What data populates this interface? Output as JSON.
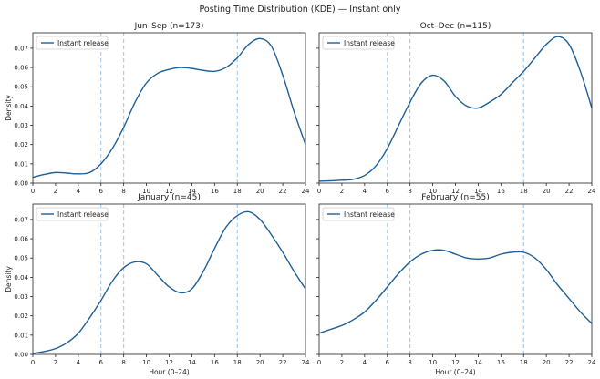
{
  "suptitle": "Posting Time Distribution (KDE) — Instant only",
  "chart_data": [
    {
      "type": "line",
      "title": "Jun–Sep (n=173)",
      "xlabel": "",
      "ylabel": "Density",
      "xlim": [
        0,
        24
      ],
      "ylim": [
        0,
        0.078
      ],
      "xticks": [
        "0",
        "2",
        "4",
        "6",
        "8",
        "10",
        "12",
        "14",
        "16",
        "18",
        "20",
        "22",
        "24"
      ],
      "yticks": [
        "0.00",
        "0.01",
        "0.02",
        "0.03",
        "0.04",
        "0.05",
        "0.06",
        "0.07"
      ],
      "vlines": [
        6,
        8,
        18
      ],
      "legend": "top-left",
      "series": [
        {
          "name": "Instant release",
          "color": "#1f5f96",
          "x": [
            0,
            1,
            2,
            3,
            4,
            5,
            6,
            7,
            8,
            9,
            10,
            11,
            12,
            13,
            14,
            15,
            16,
            17,
            18,
            19,
            20,
            21,
            22,
            23,
            24
          ],
          "y": [
            0.003,
            0.0045,
            0.0055,
            0.0052,
            0.0048,
            0.0055,
            0.01,
            0.018,
            0.029,
            0.042,
            0.052,
            0.057,
            0.059,
            0.06,
            0.0595,
            0.0585,
            0.058,
            0.06,
            0.065,
            0.072,
            0.075,
            0.071,
            0.056,
            0.037,
            0.02
          ]
        }
      ]
    },
    {
      "type": "line",
      "title": "Oct–Dec (n=115)",
      "xlabel": "",
      "ylabel": "",
      "xlim": [
        0,
        24
      ],
      "ylim": [
        0,
        0.078
      ],
      "xticks": [
        "0",
        "2",
        "4",
        "6",
        "8",
        "10",
        "12",
        "14",
        "16",
        "18",
        "20",
        "22",
        "24"
      ],
      "yticks": [],
      "vlines": [
        6,
        8,
        18
      ],
      "legend": "top-left",
      "series": [
        {
          "name": "Instant release",
          "color": "#1f5f96",
          "x": [
            0,
            1,
            2,
            3,
            4,
            5,
            6,
            7,
            8,
            9,
            10,
            11,
            12,
            13,
            14,
            15,
            16,
            17,
            18,
            19,
            20,
            21,
            22,
            23,
            24
          ],
          "y": [
            0.001,
            0.0012,
            0.0015,
            0.002,
            0.004,
            0.009,
            0.018,
            0.03,
            0.042,
            0.052,
            0.056,
            0.053,
            0.045,
            0.04,
            0.039,
            0.042,
            0.046,
            0.052,
            0.058,
            0.065,
            0.072,
            0.076,
            0.072,
            0.058,
            0.039
          ]
        }
      ]
    },
    {
      "type": "line",
      "title": "January (n=45)",
      "xlabel": "Hour (0–24)",
      "ylabel": "Density",
      "xlim": [
        0,
        24
      ],
      "ylim": [
        0,
        0.078
      ],
      "xticks": [
        "0",
        "2",
        "4",
        "6",
        "8",
        "10",
        "12",
        "14",
        "16",
        "18",
        "20",
        "22",
        "24"
      ],
      "yticks": [
        "0.00",
        "0.01",
        "0.02",
        "0.03",
        "0.04",
        "0.05",
        "0.06",
        "0.07"
      ],
      "vlines": [
        6,
        8,
        18
      ],
      "legend": "top-left",
      "series": [
        {
          "name": "Instant release",
          "color": "#1f5f96",
          "x": [
            0,
            1,
            2,
            3,
            4,
            5,
            6,
            7,
            8,
            9,
            10,
            11,
            12,
            13,
            14,
            15,
            16,
            17,
            18,
            19,
            20,
            21,
            22,
            23,
            24
          ],
          "y": [
            0.0005,
            0.0015,
            0.003,
            0.006,
            0.011,
            0.019,
            0.028,
            0.038,
            0.045,
            0.048,
            0.047,
            0.041,
            0.035,
            0.032,
            0.034,
            0.043,
            0.055,
            0.066,
            0.072,
            0.074,
            0.07,
            0.062,
            0.053,
            0.043,
            0.034
          ]
        }
      ]
    },
    {
      "type": "line",
      "title": "February (n=55)",
      "xlabel": "Hour (0–24)",
      "ylabel": "",
      "xlim": [
        0,
        24
      ],
      "ylim": [
        0,
        0.078
      ],
      "xticks": [
        "0",
        "2",
        "4",
        "6",
        "8",
        "10",
        "12",
        "14",
        "16",
        "18",
        "20",
        "22",
        "24"
      ],
      "yticks": [],
      "vlines": [
        6,
        8,
        18
      ],
      "legend": "top-left",
      "series": [
        {
          "name": "Instant release",
          "color": "#1f5f96",
          "x": [
            0,
            1,
            2,
            3,
            4,
            5,
            6,
            7,
            8,
            9,
            10,
            11,
            12,
            13,
            14,
            15,
            16,
            17,
            18,
            19,
            20,
            21,
            22,
            23,
            24
          ],
          "y": [
            0.011,
            0.013,
            0.015,
            0.018,
            0.022,
            0.028,
            0.035,
            0.042,
            0.048,
            0.052,
            0.054,
            0.054,
            0.052,
            0.05,
            0.0495,
            0.05,
            0.052,
            0.053,
            0.053,
            0.05,
            0.044,
            0.036,
            0.029,
            0.022,
            0.016
          ]
        }
      ]
    }
  ]
}
